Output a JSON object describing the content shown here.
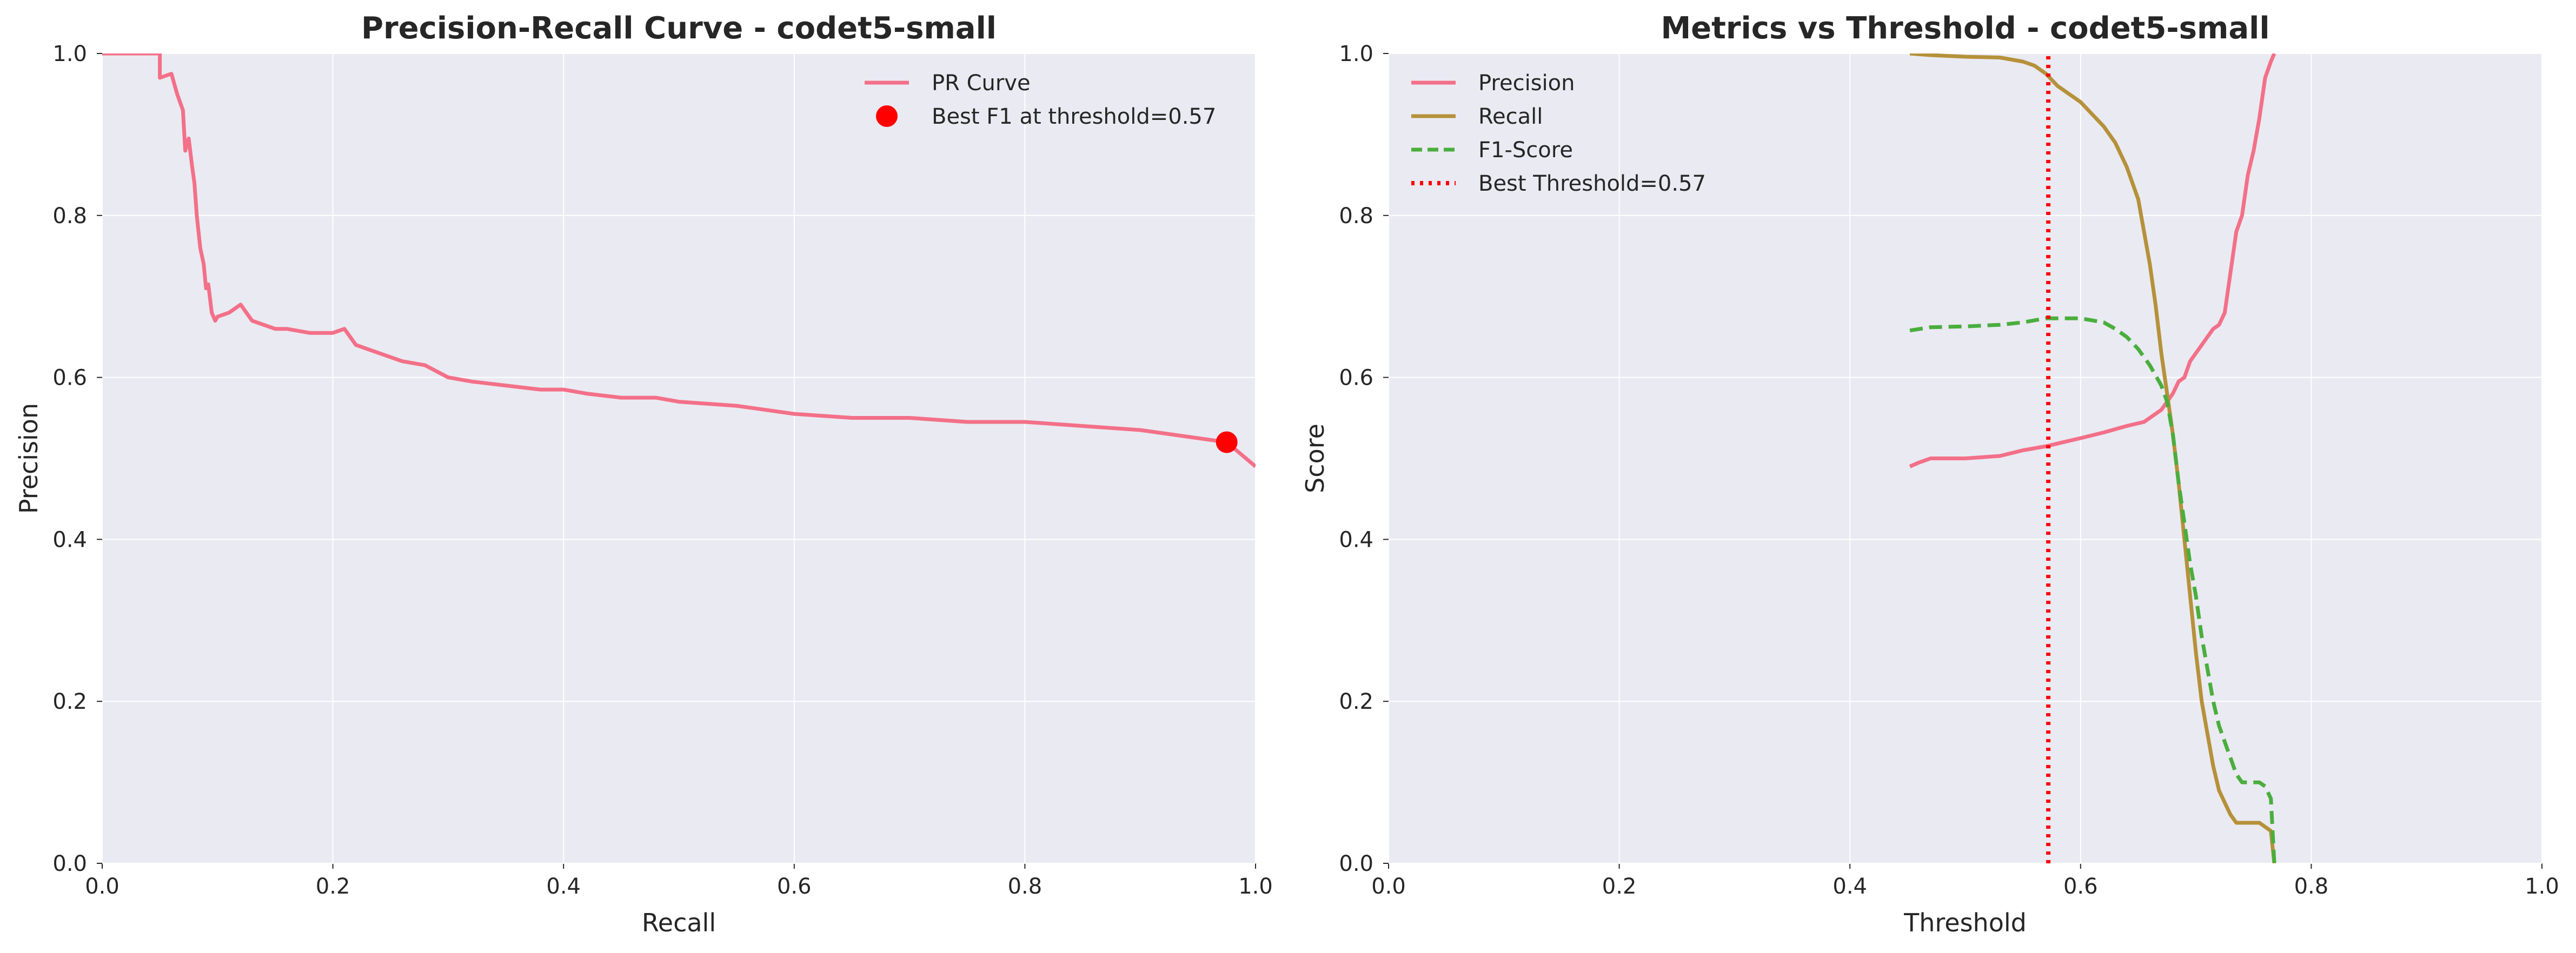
{
  "chart_data": [
    {
      "type": "line",
      "title": "Precision-Recall Curve - codet5-small",
      "xlabel": "Recall",
      "ylabel": "Precision",
      "xlim": [
        0,
        1
      ],
      "ylim": [
        0,
        1
      ],
      "xticks": [
        "0.0",
        "0.2",
        "0.4",
        "0.6",
        "0.8",
        "1.0"
      ],
      "yticks": [
        "0.0",
        "0.2",
        "0.4",
        "0.6",
        "0.8",
        "1.0"
      ],
      "grid": true,
      "legend_position": "top-right",
      "background_color": "#eaeaf2",
      "series": [
        {
          "name": "PR Curve",
          "color": "#f37088",
          "style": "solid",
          "x": [
            0.0,
            0.05,
            0.05,
            0.06,
            0.065,
            0.07,
            0.072,
            0.075,
            0.078,
            0.08,
            0.082,
            0.085,
            0.088,
            0.09,
            0.092,
            0.095,
            0.098,
            0.1,
            0.11,
            0.12,
            0.125,
            0.13,
            0.14,
            0.15,
            0.16,
            0.18,
            0.2,
            0.21,
            0.22,
            0.24,
            0.26,
            0.28,
            0.3,
            0.32,
            0.35,
            0.38,
            0.4,
            0.42,
            0.45,
            0.48,
            0.5,
            0.55,
            0.6,
            0.65,
            0.7,
            0.75,
            0.8,
            0.85,
            0.9,
            0.95,
            0.975,
            1.0
          ],
          "y": [
            1.0,
            1.0,
            0.97,
            0.975,
            0.95,
            0.93,
            0.88,
            0.895,
            0.86,
            0.84,
            0.8,
            0.76,
            0.74,
            0.71,
            0.715,
            0.68,
            0.67,
            0.675,
            0.68,
            0.69,
            0.68,
            0.67,
            0.665,
            0.66,
            0.66,
            0.655,
            0.655,
            0.66,
            0.64,
            0.63,
            0.62,
            0.615,
            0.6,
            0.595,
            0.59,
            0.585,
            0.585,
            0.58,
            0.575,
            0.575,
            0.57,
            0.565,
            0.555,
            0.55,
            0.55,
            0.545,
            0.545,
            0.54,
            0.535,
            0.525,
            0.52,
            0.49
          ]
        }
      ],
      "marker": {
        "name": "Best F1 at threshold=0.57",
        "x": 0.975,
        "y": 0.52,
        "color": "#ff0000"
      },
      "legend": [
        "PR Curve",
        "Best F1 at threshold=0.57"
      ]
    },
    {
      "type": "line",
      "title": "Metrics vs Threshold - codet5-small",
      "xlabel": "Threshold",
      "ylabel": "Score",
      "xlim": [
        0,
        1
      ],
      "ylim": [
        0,
        1
      ],
      "xticks": [
        "0.0",
        "0.2",
        "0.4",
        "0.6",
        "0.8",
        "1.0"
      ],
      "yticks": [
        "0.0",
        "0.2",
        "0.4",
        "0.6",
        "0.8",
        "1.0"
      ],
      "grid": true,
      "legend_position": "top-left",
      "background_color": "#eaeaf2",
      "series": [
        {
          "name": "Precision",
          "color": "#f37088",
          "style": "solid",
          "x": [
            0.452,
            0.46,
            0.47,
            0.5,
            0.53,
            0.55,
            0.57,
            0.6,
            0.62,
            0.64,
            0.655,
            0.665,
            0.67,
            0.675,
            0.68,
            0.685,
            0.69,
            0.695,
            0.7,
            0.705,
            0.71,
            0.715,
            0.72,
            0.725,
            0.73,
            0.735,
            0.74,
            0.745,
            0.75,
            0.755,
            0.76,
            0.765,
            0.768
          ],
          "y": [
            0.49,
            0.495,
            0.5,
            0.5,
            0.503,
            0.51,
            0.515,
            0.525,
            0.532,
            0.54,
            0.545,
            0.555,
            0.56,
            0.57,
            0.58,
            0.595,
            0.6,
            0.62,
            0.63,
            0.64,
            0.65,
            0.66,
            0.665,
            0.68,
            0.73,
            0.78,
            0.8,
            0.85,
            0.88,
            0.92,
            0.97,
            0.99,
            1.0
          ]
        },
        {
          "name": "Recall",
          "color": "#b5913a",
          "style": "solid",
          "x": [
            0.452,
            0.47,
            0.5,
            0.53,
            0.55,
            0.56,
            0.57,
            0.58,
            0.59,
            0.6,
            0.61,
            0.62,
            0.63,
            0.64,
            0.65,
            0.655,
            0.66,
            0.665,
            0.67,
            0.675,
            0.68,
            0.685,
            0.69,
            0.695,
            0.7,
            0.705,
            0.71,
            0.715,
            0.72,
            0.725,
            0.73,
            0.735,
            0.74,
            0.745,
            0.75,
            0.755,
            0.76,
            0.765,
            0.768
          ],
          "y": [
            1.0,
            0.998,
            0.996,
            0.995,
            0.99,
            0.985,
            0.975,
            0.96,
            0.95,
            0.94,
            0.925,
            0.91,
            0.89,
            0.86,
            0.82,
            0.78,
            0.74,
            0.69,
            0.63,
            0.58,
            0.53,
            0.47,
            0.4,
            0.33,
            0.26,
            0.2,
            0.16,
            0.12,
            0.09,
            0.075,
            0.06,
            0.05,
            0.05,
            0.05,
            0.05,
            0.05,
            0.045,
            0.04,
            0.0
          ]
        },
        {
          "name": "F1-Score",
          "color": "#4aae3d",
          "style": "dashed",
          "x": [
            0.452,
            0.47,
            0.5,
            0.53,
            0.55,
            0.57,
            0.6,
            0.62,
            0.63,
            0.64,
            0.65,
            0.66,
            0.67,
            0.675,
            0.68,
            0.685,
            0.69,
            0.695,
            0.7,
            0.705,
            0.71,
            0.715,
            0.72,
            0.725,
            0.73,
            0.735,
            0.74,
            0.745,
            0.75,
            0.755,
            0.76,
            0.765,
            0.768
          ],
          "y": [
            0.658,
            0.662,
            0.663,
            0.665,
            0.668,
            0.673,
            0.673,
            0.668,
            0.66,
            0.65,
            0.635,
            0.615,
            0.59,
            0.57,
            0.53,
            0.47,
            0.42,
            0.37,
            0.33,
            0.28,
            0.24,
            0.2,
            0.17,
            0.15,
            0.13,
            0.11,
            0.1,
            0.1,
            0.1,
            0.1,
            0.095,
            0.08,
            0.0
          ]
        },
        {
          "name": "Best Threshold=0.57",
          "color": "#ff0000",
          "style": "dotted",
          "x": [
            0.572,
            0.572
          ],
          "y": [
            0.0,
            1.0
          ]
        }
      ],
      "legend": [
        "Precision",
        "Recall",
        "F1-Score",
        "Best Threshold=0.57"
      ]
    }
  ]
}
